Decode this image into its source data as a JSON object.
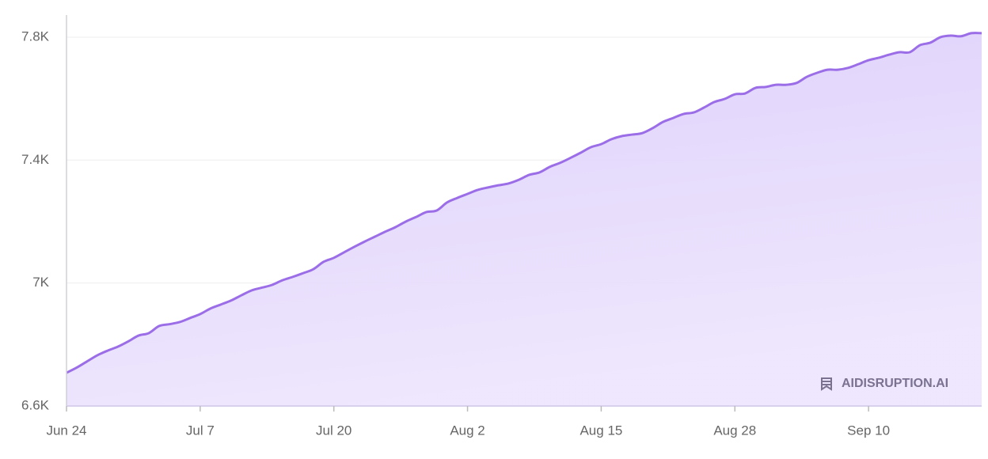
{
  "chart_data": {
    "type": "area",
    "color": "#9b6ee8",
    "watermark": "AIDISRUPTION.AI",
    "categories": [
      "Jun 24",
      null,
      null,
      null,
      null,
      null,
      null,
      null,
      null,
      null,
      null,
      null,
      null,
      "Jul 7",
      null,
      null,
      null,
      null,
      null,
      null,
      null,
      null,
      null,
      null,
      null,
      null,
      "Jul 20",
      null,
      null,
      null,
      null,
      null,
      null,
      null,
      null,
      null,
      null,
      null,
      null,
      "Aug 2",
      null,
      null,
      null,
      null,
      null,
      null,
      null,
      null,
      null,
      null,
      null,
      null,
      "Aug 15",
      null,
      null,
      null,
      null,
      null,
      null,
      null,
      null,
      null,
      null,
      null,
      null,
      "Aug 28",
      null,
      null,
      null,
      null,
      null,
      null,
      null,
      null,
      null,
      null,
      null,
      null,
      "Sep 10",
      null,
      null,
      null,
      null,
      null,
      null,
      null,
      null,
      null,
      null,
      null
    ],
    "values": [
      6708,
      6725,
      6745,
      6765,
      6780,
      6793,
      6810,
      6829,
      6837,
      6860,
      6866,
      6873,
      6886,
      6899,
      6917,
      6930,
      6943,
      6960,
      6976,
      6985,
      6994,
      7009,
      7020,
      7032,
      7045,
      7069,
      7082,
      7100,
      7118,
      7135,
      7151,
      7167,
      7182,
      7200,
      7215,
      7231,
      7236,
      7262,
      7277,
      7290,
      7303,
      7311,
      7318,
      7324,
      7336,
      7352,
      7360,
      7378,
      7391,
      7407,
      7424,
      7442,
      7452,
      7468,
      7478,
      7483,
      7488,
      7504,
      7524,
      7537,
      7550,
      7555,
      7571,
      7589,
      7599,
      7614,
      7617,
      7635,
      7638,
      7645,
      7645,
      7651,
      7671,
      7684,
      7694,
      7694,
      7700,
      7712,
      7725,
      7733,
      7743,
      7751,
      7751,
      7774,
      7782,
      7800,
      7805,
      7803,
      7813,
      7813
    ],
    "ylim": [
      6600,
      7872
    ],
    "yticks": [
      {
        "value": 6600,
        "label": "6.6K"
      },
      {
        "value": 7000,
        "label": "7K"
      },
      {
        "value": 7400,
        "label": "7.4K"
      },
      {
        "value": 7800,
        "label": "7.8K"
      }
    ],
    "grid": true
  }
}
